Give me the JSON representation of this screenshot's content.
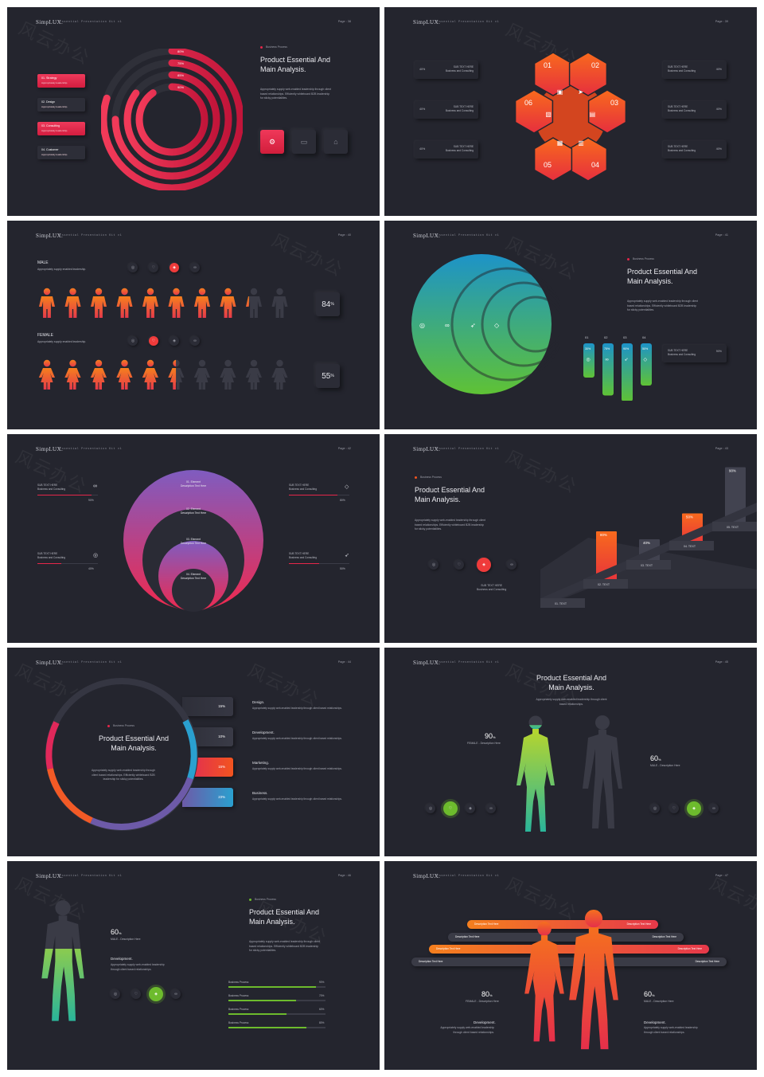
{
  "brand": "SimpLUX.",
  "kit": "Essential Presentation Kit v1",
  "watermark": "风云办公",
  "title_line1": "Product Essential And",
  "title_line2": "Main Analysis.",
  "tag": "Business Process",
  "desc": "Appropriately supply web-enabled leadership through client based relationships. Efficiently whiteboard B2B leadership for sticky potentialities.",
  "colors": {
    "red": "#e5264a",
    "orange": "#f2541f",
    "green": "#6dbb2d",
    "teal": "#1fa0c7",
    "purple": "#7b5fb5",
    "panel": "#24252e"
  },
  "slide1": {
    "page": "Page : 38",
    "items": [
      {
        "label": "01. Strategy",
        "sub": "Appropriately leadership.",
        "active": true
      },
      {
        "label": "02. Design",
        "sub": "Appropriately leadership.",
        "active": false
      },
      {
        "label": "03. Consulting",
        "sub": "Appropriately leadership.",
        "active": true
      },
      {
        "label": "04. Customer",
        "sub": "Appropriately leadership.",
        "active": false
      }
    ],
    "rings": [
      {
        "label": "80%",
        "value": 80
      },
      {
        "label": "75%",
        "value": 75
      },
      {
        "label": "85%",
        "value": 85
      },
      {
        "label": "90%",
        "value": 90
      }
    ],
    "buttons": [
      "gear-icon",
      "briefcase-icon",
      "users-icon"
    ]
  },
  "slide2": {
    "page": "Page : 39",
    "hex": [
      "01",
      "02",
      "03",
      "04",
      "05",
      "06"
    ],
    "left_cards": [
      {
        "pct": "40%",
        "title": "SUB TEXT HERE",
        "sub": "Business and Consulting"
      },
      {
        "pct": "40%",
        "title": "SUB TEXT HERE",
        "sub": "Business and Consulting"
      },
      {
        "pct": "40%",
        "title": "SUB TEXT HERE",
        "sub": "Business and Consulting"
      }
    ],
    "right_cards": [
      {
        "pct": "40%",
        "title": "SUB TEXT HERE",
        "sub": "Business and Consulting"
      },
      {
        "pct": "40%",
        "title": "SUB TEXT HERE",
        "sub": "Business and Consulting"
      },
      {
        "pct": "40%",
        "title": "SUB TEXT HERE",
        "sub": "Business and Consulting"
      }
    ]
  },
  "slide3": {
    "page": "Page : 40",
    "male": {
      "label": "MALE",
      "sub": "Appropriately supply enabled leadership.",
      "value": "84",
      "unit": "%",
      "pct": 84
    },
    "female": {
      "label": "FEMALE",
      "sub": "Appropriately supply enabled leadership.",
      "value": "55",
      "unit": "%",
      "pct": 55
    }
  },
  "slide4": {
    "page": "Page : 41",
    "bars": [
      {
        "n": "01",
        "pct": "30%",
        "value": 30
      },
      {
        "n": "02",
        "pct": "75%",
        "value": 75
      },
      {
        "n": "03",
        "pct": "90%",
        "value": 90
      },
      {
        "n": "04",
        "pct": "50%",
        "value": 50
      }
    ],
    "card": {
      "title": "SUB TEXT HERE",
      "sub": "Business and Consulting",
      "pct": "90%"
    }
  },
  "slide5": {
    "page": "Page : 42",
    "elements": [
      {
        "title": "01. Element",
        "sub": "Description Text Here"
      },
      {
        "title": "02. Element",
        "sub": "Description Text Here"
      },
      {
        "title": "03. Element",
        "sub": "Description Text Here"
      },
      {
        "title": "04. Element",
        "sub": "Description Text Here"
      }
    ],
    "stats": [
      {
        "title": "SUB TEXT HERE",
        "sub": "Business and Consulting",
        "pct": "90%",
        "value": 90
      },
      {
        "title": "SUB TEXT HERE",
        "sub": "Business and Consulting",
        "pct": "40%",
        "value": 40
      },
      {
        "title": "SUB TEXT HERE",
        "sub": "Business and Consulting",
        "pct": "80%",
        "value": 80
      },
      {
        "title": "SUB TEXT HERE",
        "sub": "Business and Consulting",
        "pct": "50%",
        "value": 50
      }
    ]
  },
  "slide6": {
    "page": "Page : 43",
    "bars": [
      {
        "pct": "80%",
        "value": 80,
        "label": "01. TEXT",
        "color": "orange"
      },
      {
        "pct": "40%",
        "value": 40,
        "label": "02. TEXT",
        "color": "grey"
      },
      {
        "pct": "50%",
        "value": 50,
        "label": "03. TEXT",
        "color": "orange"
      },
      {
        "pct": "90%",
        "value": 90,
        "label": "04. TEXT",
        "color": "grey"
      },
      {
        "pct": "30%",
        "value": 30,
        "label": "05. TEXT",
        "color": "orange"
      }
    ],
    "sub": {
      "title": "SUB TEXT HERE",
      "sub": "Business and Consulting"
    }
  },
  "slide7": {
    "page": "Page : 44",
    "rows": [
      {
        "pct": "15%",
        "title": "Design.",
        "desc": "Appropriately supply web-enabled leadership through client based relationships."
      },
      {
        "pct": "10%",
        "title": "Development.",
        "desc": "Appropriately supply web-enabled leadership through client based relationships."
      },
      {
        "pct": "15%",
        "title": "Marketing.",
        "desc": "Appropriately supply web-enabled leadership through client based relationships."
      },
      {
        "pct": "23%",
        "title": "Business.",
        "desc": "Appropriately supply web-enabled leadership through client based relationships."
      }
    ]
  },
  "slide8": {
    "page": "Page : 45",
    "desc": "Appropriately supply web-enabled leadership through client based relationships.",
    "female": {
      "value": "90",
      "unit": "%",
      "label": "FEMALE - Description Here",
      "pct": 90
    },
    "male": {
      "value": "60",
      "unit": "%",
      "label": "MALE - Description Here",
      "pct": 60
    }
  },
  "slide9": {
    "page": "Page : 46",
    "male": {
      "value": "60",
      "unit": "%",
      "label": "MALE - Description Here",
      "pct": 60
    },
    "dev_title": "Development.",
    "dev_desc": "Appropriately supply web-enabled leadership through client based relationships.",
    "bars": [
      {
        "label": "Business Process",
        "pct": "90%",
        "value": 90
      },
      {
        "label": "Business Process",
        "pct": "70%",
        "value": 70
      },
      {
        "label": "Business Process",
        "pct": "60%",
        "value": 60
      },
      {
        "label": "Business Process",
        "pct": "80%",
        "value": 80
      }
    ]
  },
  "slide10": {
    "page": "Page : 47",
    "ribbon": "Description Text Here",
    "female": {
      "value": "80",
      "unit": "%",
      "label": "FEMALE - Description Here"
    },
    "male": {
      "value": "60",
      "unit": "%",
      "label": "MALE - Description Here"
    },
    "dev_title": "Development.",
    "dev_desc": "Appropriately supply web-enabled leadership through client based relationships."
  }
}
